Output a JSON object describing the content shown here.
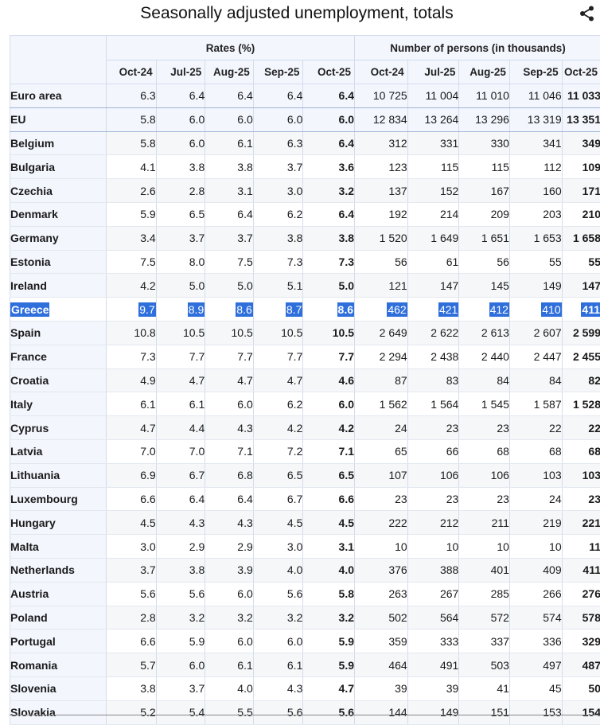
{
  "page": {
    "title": "Seasonally adjusted unemployment, totals",
    "share_icon": "share-icon"
  },
  "table": {
    "group_headers": [
      "Rates (%)",
      "Number of persons (in thousands)"
    ],
    "rate_columns": [
      "Oct-24",
      "Jul-25",
      "Aug-25",
      "Sep-25",
      "Oct-25"
    ],
    "count_columns": [
      "Oct-24",
      "Jul-25",
      "Aug-25",
      "Sep-25",
      "Oct-25"
    ],
    "rows": [
      {
        "country": "Euro area",
        "aggregate": true,
        "rates": [
          "6.3",
          "6.4",
          "6.4",
          "6.4",
          "6.4"
        ],
        "counts": [
          "10 725",
          "11 004",
          "11 010",
          "11 046",
          "11 033"
        ]
      },
      {
        "country": "EU",
        "aggregate": true,
        "rates": [
          "5.8",
          "6.0",
          "6.0",
          "6.0",
          "6.0"
        ],
        "counts": [
          "12 834",
          "13 264",
          "13 296",
          "13 319",
          "13 351"
        ]
      },
      {
        "country": "Belgium",
        "rates": [
          "5.8",
          "6.0",
          "6.1",
          "6.3",
          "6.4"
        ],
        "counts": [
          "312",
          "331",
          "330",
          "341",
          "349"
        ]
      },
      {
        "country": "Bulgaria",
        "rates": [
          "4.1",
          "3.8",
          "3.8",
          "3.7",
          "3.6"
        ],
        "counts": [
          "123",
          "115",
          "115",
          "112",
          "109"
        ]
      },
      {
        "country": "Czechia",
        "rates": [
          "2.6",
          "2.8",
          "3.1",
          "3.0",
          "3.2"
        ],
        "counts": [
          "137",
          "152",
          "167",
          "160",
          "171"
        ]
      },
      {
        "country": "Denmark",
        "rates": [
          "5.9",
          "6.5",
          "6.4",
          "6.2",
          "6.4"
        ],
        "counts": [
          "192",
          "214",
          "209",
          "203",
          "210"
        ]
      },
      {
        "country": "Germany",
        "rates": [
          "3.4",
          "3.7",
          "3.7",
          "3.8",
          "3.8"
        ],
        "counts": [
          "1 520",
          "1 649",
          "1 651",
          "1 653",
          "1 658"
        ]
      },
      {
        "country": "Estonia",
        "rates": [
          "7.5",
          "8.0",
          "7.5",
          "7.3",
          "7.3"
        ],
        "counts": [
          "56",
          "61",
          "56",
          "55",
          "55"
        ]
      },
      {
        "country": "Ireland",
        "rates": [
          "4.2",
          "5.0",
          "5.0",
          "5.1",
          "5.0"
        ],
        "counts": [
          "121",
          "147",
          "145",
          "149",
          "147"
        ]
      },
      {
        "country": "Greece",
        "selected": true,
        "rates": [
          "9.7",
          "8.9",
          "8.6",
          "8.7",
          "8.6"
        ],
        "counts": [
          "462",
          "421",
          "412",
          "410",
          "411"
        ]
      },
      {
        "country": "Spain",
        "rates": [
          "10.8",
          "10.5",
          "10.5",
          "10.5",
          "10.5"
        ],
        "counts": [
          "2 649",
          "2 622",
          "2 613",
          "2 607",
          "2 599"
        ]
      },
      {
        "country": "France",
        "rates": [
          "7.3",
          "7.7",
          "7.7",
          "7.7",
          "7.7"
        ],
        "counts": [
          "2 294",
          "2 438",
          "2 440",
          "2 447",
          "2 455"
        ]
      },
      {
        "country": "Croatia",
        "rates": [
          "4.9",
          "4.7",
          "4.7",
          "4.7",
          "4.6"
        ],
        "counts": [
          "87",
          "83",
          "84",
          "84",
          "82"
        ]
      },
      {
        "country": "Italy",
        "rates": [
          "6.1",
          "6.1",
          "6.0",
          "6.2",
          "6.0"
        ],
        "counts": [
          "1 562",
          "1 564",
          "1 545",
          "1 587",
          "1 528"
        ]
      },
      {
        "country": "Cyprus",
        "rates": [
          "4.7",
          "4.4",
          "4.3",
          "4.2",
          "4.2"
        ],
        "counts": [
          "24",
          "23",
          "23",
          "22",
          "22"
        ]
      },
      {
        "country": "Latvia",
        "rates": [
          "7.0",
          "7.0",
          "7.1",
          "7.2",
          "7.1"
        ],
        "counts": [
          "65",
          "66",
          "68",
          "68",
          "68"
        ]
      },
      {
        "country": "Lithuania",
        "rates": [
          "6.9",
          "6.7",
          "6.8",
          "6.5",
          "6.5"
        ],
        "counts": [
          "107",
          "106",
          "106",
          "103",
          "103"
        ]
      },
      {
        "country": "Luxembourg",
        "rates": [
          "6.6",
          "6.4",
          "6.4",
          "6.7",
          "6.6"
        ],
        "counts": [
          "23",
          "23",
          "23",
          "24",
          "23"
        ]
      },
      {
        "country": "Hungary",
        "rates": [
          "4.5",
          "4.3",
          "4.3",
          "4.5",
          "4.5"
        ],
        "counts": [
          "222",
          "212",
          "211",
          "219",
          "221"
        ]
      },
      {
        "country": "Malta",
        "rates": [
          "3.0",
          "2.9",
          "2.9",
          "3.0",
          "3.1"
        ],
        "counts": [
          "10",
          "10",
          "10",
          "10",
          "11"
        ]
      },
      {
        "country": "Netherlands",
        "rates": [
          "3.7",
          "3.8",
          "3.9",
          "4.0",
          "4.0"
        ],
        "counts": [
          "376",
          "388",
          "401",
          "409",
          "411"
        ]
      },
      {
        "country": "Austria",
        "rates": [
          "5.6",
          "5.6",
          "6.0",
          "5.6",
          "5.8"
        ],
        "counts": [
          "263",
          "267",
          "285",
          "266",
          "276"
        ]
      },
      {
        "country": "Poland",
        "rates": [
          "2.8",
          "3.2",
          "3.2",
          "3.2",
          "3.2"
        ],
        "counts": [
          "502",
          "564",
          "572",
          "574",
          "578"
        ]
      },
      {
        "country": "Portugal",
        "rates": [
          "6.6",
          "5.9",
          "6.0",
          "6.0",
          "5.9"
        ],
        "counts": [
          "359",
          "333",
          "337",
          "336",
          "329"
        ]
      },
      {
        "country": "Romania",
        "rates": [
          "5.7",
          "6.0",
          "6.1",
          "6.1",
          "5.9"
        ],
        "counts": [
          "464",
          "491",
          "503",
          "497",
          "487"
        ]
      },
      {
        "country": "Slovenia",
        "rates": [
          "3.8",
          "3.7",
          "4.0",
          "4.3",
          "4.7"
        ],
        "counts": [
          "39",
          "39",
          "41",
          "45",
          "50"
        ]
      },
      {
        "country": "Slovakia",
        "rates": [
          "5.2",
          "5.4",
          "5.5",
          "5.6",
          "5.6"
        ],
        "counts": [
          "144",
          "149",
          "151",
          "153",
          "154"
        ]
      }
    ]
  }
}
